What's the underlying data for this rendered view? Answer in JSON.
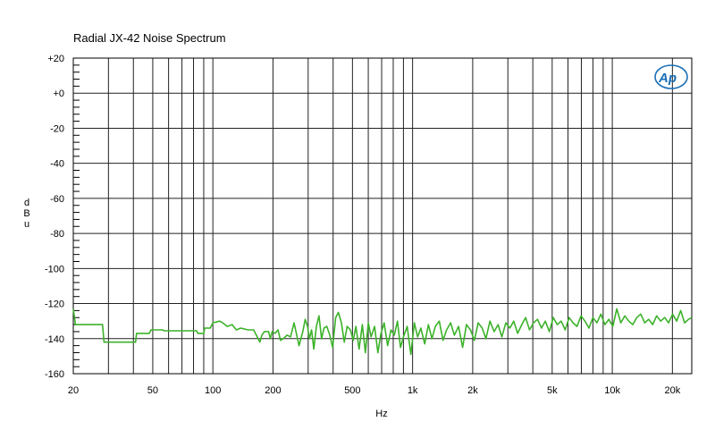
{
  "chart_data": {
    "type": "line",
    "title": "Radial JX-42 Noise Spectrum",
    "xlabel": "Hz",
    "ylabel": "dBu",
    "x_scale": "log",
    "xlim": [
      20,
      25000
    ],
    "ylim": [
      -160,
      20
    ],
    "grid": true,
    "line_color": "#3cb22a",
    "logo": "Ap",
    "logo_color": "#1a6fb5",
    "x_ticks": [
      {
        "value": 20,
        "label": "20"
      },
      {
        "value": 50,
        "label": "50"
      },
      {
        "value": 100,
        "label": "100"
      },
      {
        "value": 200,
        "label": "200"
      },
      {
        "value": 500,
        "label": "500"
      },
      {
        "value": 1000,
        "label": "1k"
      },
      {
        "value": 2000,
        "label": "2k"
      },
      {
        "value": 5000,
        "label": "5k"
      },
      {
        "value": 10000,
        "label": "10k"
      },
      {
        "value": 20000,
        "label": "20k"
      }
    ],
    "y_ticks": [
      {
        "value": 20,
        "label": "+20"
      },
      {
        "value": 0,
        "label": "+0"
      },
      {
        "value": -20,
        "label": "-20"
      },
      {
        "value": -40,
        "label": "-40"
      },
      {
        "value": -60,
        "label": "-60"
      },
      {
        "value": -80,
        "label": "-80"
      },
      {
        "value": -100,
        "label": "-100"
      },
      {
        "value": -120,
        "label": "-120"
      },
      {
        "value": -140,
        "label": "-140"
      },
      {
        "value": -160,
        "label": "-160"
      }
    ],
    "series": [
      {
        "x": [
          20,
          20.5,
          28,
          28.5,
          41,
          41.5,
          48,
          49,
          56,
          57,
          83,
          84,
          90,
          91,
          97,
          100,
          108,
          112,
          118,
          125,
          131,
          138,
          150,
          160,
          172,
          176,
          181,
          190,
          194,
          198,
          205,
          212,
          218,
          225,
          235,
          245,
          255,
          270,
          282,
          290,
          298,
          304,
          312,
          320,
          330,
          340,
          350,
          360,
          372,
          385,
          398,
          412,
          425,
          440,
          455,
          470,
          488,
          505,
          520,
          540,
          560,
          580,
          600,
          620,
          645,
          670,
          695,
          720,
          750,
          780,
          810,
          840,
          870,
          900,
          940,
          980,
          1020,
          1060,
          1100,
          1150,
          1200,
          1250,
          1300,
          1360,
          1420,
          1480,
          1550,
          1620,
          1700,
          1780,
          1860,
          1950,
          2040,
          2130,
          2230,
          2330,
          2440,
          2560,
          2680,
          2800,
          2930,
          3070,
          3210,
          3360,
          3520,
          3680,
          3850,
          4030,
          4220,
          4420,
          4620,
          4840,
          5060,
          5300,
          5550,
          5810,
          6080,
          6360,
          6660,
          6970,
          7300,
          7640,
          8000,
          8380,
          8770,
          9180,
          9610,
          10060,
          10530,
          11030,
          11550,
          12090,
          12660,
          13260,
          13880,
          14530,
          15220,
          15930,
          16680,
          17470,
          18290,
          19150,
          20050,
          21000,
          21990,
          23020,
          24100,
          25000
        ],
        "y": [
          -123,
          -132,
          -132,
          -142,
          -142,
          -137,
          -137,
          -135,
          -135,
          -135.5,
          -135.5,
          -137,
          -137,
          -134,
          -134,
          -131,
          -130,
          -131,
          -133,
          -132,
          -135,
          -134,
          -135,
          -135,
          -142,
          -138,
          -136,
          -136,
          -140,
          -136,
          -137,
          -135,
          -141,
          -140,
          -138,
          -139,
          -131,
          -144,
          -136,
          -129,
          -133,
          -140,
          -135,
          -146,
          -133,
          -127,
          -140,
          -134,
          -133,
          -138,
          -145,
          -128,
          -125,
          -131,
          -142,
          -133,
          -135,
          -141,
          -133,
          -146,
          -132,
          -148,
          -131,
          -139,
          -133,
          -148,
          -137,
          -131,
          -144,
          -135,
          -138,
          -130,
          -145,
          -139,
          -133,
          -149,
          -131,
          -139,
          -134,
          -143,
          -132,
          -140,
          -133,
          -130,
          -141,
          -135,
          -131,
          -138,
          -133,
          -145,
          -132,
          -135,
          -141,
          -131,
          -134,
          -140,
          -130,
          -136,
          -132,
          -139,
          -131,
          -134,
          -130,
          -137,
          -132,
          -128,
          -135,
          -131,
          -129,
          -134,
          -130,
          -136,
          -128,
          -132,
          -130,
          -135,
          -128,
          -131,
          -133,
          -127,
          -130,
          -134,
          -128,
          -131,
          -126,
          -132,
          -129,
          -133,
          -123,
          -131,
          -127,
          -130,
          -132,
          -128,
          -126,
          -131,
          -129,
          -132,
          -127,
          -130,
          -128,
          -131,
          -126,
          -130,
          -124,
          -131,
          -129,
          -128
        ]
      }
    ]
  }
}
